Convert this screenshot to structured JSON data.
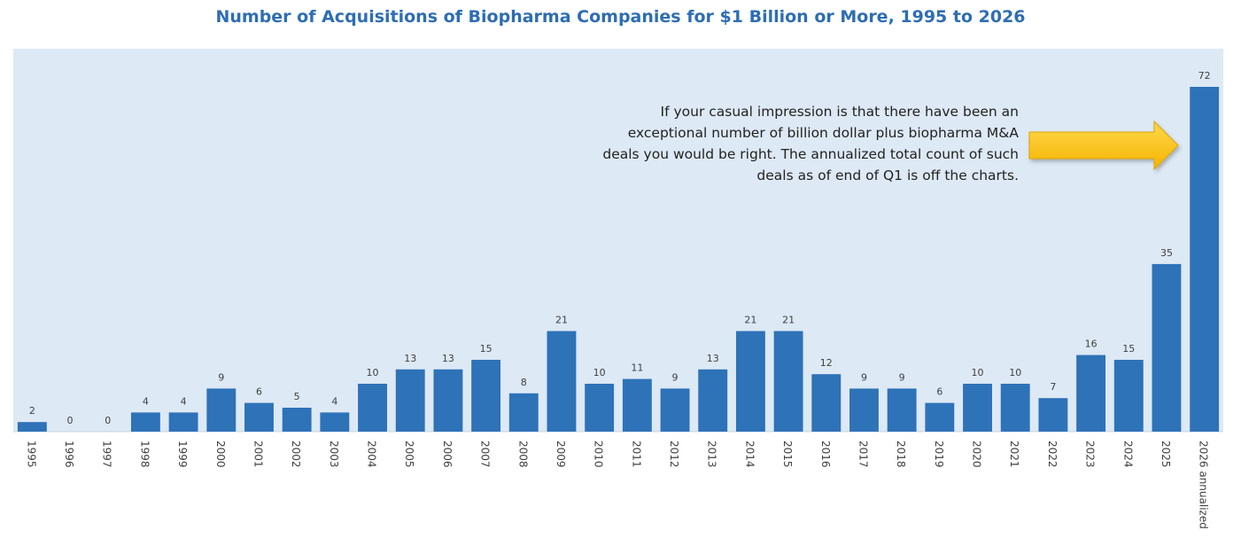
{
  "chart_data": {
    "type": "bar",
    "title": "Number of Acquisitions of Biopharma Companies for $1 Billion or More, 1995 to 2026",
    "categories": [
      "1995",
      "1996",
      "1997",
      "1998",
      "1999",
      "2000",
      "2001",
      "2002",
      "2003",
      "2004",
      "2005",
      "2006",
      "2007",
      "2008",
      "2009",
      "2010",
      "2011",
      "2012",
      "2013",
      "2014",
      "2015",
      "2016",
      "2017",
      "2018",
      "2019",
      "2020",
      "2021",
      "2022",
      "2023",
      "2024",
      "2025",
      "2026 annualized"
    ],
    "values": [
      2,
      0,
      0,
      4,
      4,
      9,
      6,
      5,
      4,
      10,
      13,
      13,
      15,
      8,
      21,
      10,
      11,
      9,
      13,
      21,
      21,
      12,
      9,
      9,
      6,
      10,
      10,
      7,
      16,
      15,
      35,
      72
    ],
    "xlabel": "",
    "ylabel": "",
    "ylim": [
      0,
      80
    ],
    "grid": false,
    "bar_color": "#2e72b8",
    "plot_background": "#dde9f5",
    "annotation": "If your casual impression is that there have been an exceptional number of billion dollar plus biopharma M&A deals you would be right. The annualized total count of such deals as of end of Q1 is off the charts.",
    "annotation_arrow_color": "#ffc000"
  }
}
